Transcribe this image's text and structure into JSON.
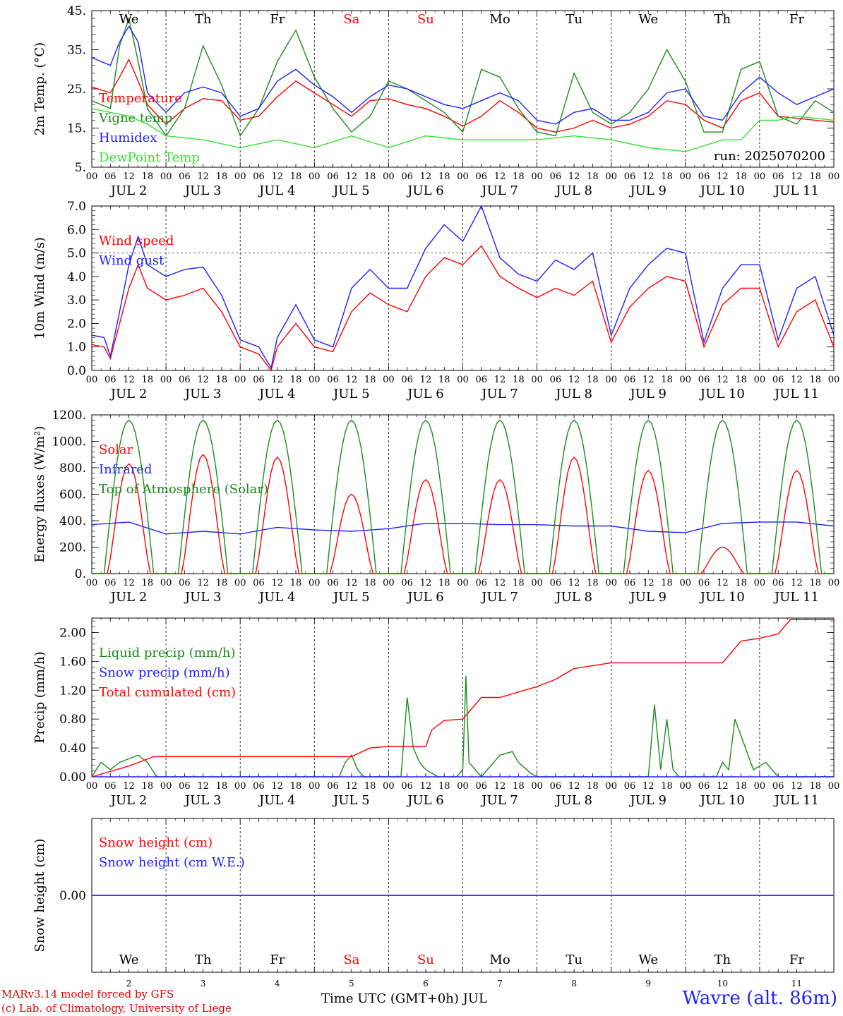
{
  "days": {
    "weekdays": [
      "We",
      "Th",
      "Fr",
      "Sa",
      "Su",
      "Mo",
      "Tu",
      "We",
      "Th",
      "Fr"
    ],
    "weekday_colors": [
      "#000000",
      "#000000",
      "#000000",
      "#ff0000",
      "#ff0000",
      "#000000",
      "#000000",
      "#000000",
      "#000000",
      "#000000"
    ],
    "day_numbers": [
      "2",
      "3",
      "4",
      "5",
      "6",
      "7",
      "8",
      "9",
      "10",
      "11"
    ],
    "date_labels": [
      "JUL  2",
      "JUL  3",
      "JUL  4",
      "JUL  5",
      "JUL  6",
      "JUL  7",
      "JUL  8",
      "JUL  9",
      "JUL 10",
      "JUL 11"
    ],
    "hour_ticks": [
      "00",
      "06",
      "12",
      "18"
    ],
    "final_tick": "00"
  },
  "footer": {
    "model_line": "MARv3.14 model forced by GFS",
    "credit_line": "(c) Lab. of Climatology, University of Liege",
    "xlabel": "Time UTC (GMT+0h) JUL",
    "station": "Wavre (alt. 86m)"
  },
  "chart_data": [
    {
      "type": "line",
      "ylabel": "2m Temp. (°C)",
      "ylim": [
        5,
        45
      ],
      "yticks": [
        "5.",
        "15.",
        "25.",
        "35.",
        "45."
      ],
      "ytick_values": [
        5,
        15,
        25,
        35,
        45
      ],
      "annotation": "run: 2025070200",
      "x_unit": "hours since JUL 2 00 UTC",
      "series": [
        {
          "name": "Temperature",
          "color": "#ff0000",
          "x": [
            0,
            6,
            9,
            12,
            15,
            18,
            24,
            30,
            36,
            42,
            48,
            54,
            60,
            66,
            72,
            78,
            84,
            90,
            96,
            102,
            108,
            114,
            120,
            126,
            132,
            138,
            144,
            150,
            156,
            162,
            168,
            174,
            180,
            186,
            192,
            198,
            204,
            210,
            216,
            222,
            228,
            234,
            240
          ],
          "y": [
            25.5,
            24,
            28,
            32.5,
            27,
            21,
            16,
            20,
            22.5,
            22,
            17,
            18,
            23,
            27,
            24,
            21,
            18,
            22,
            22.5,
            21,
            20,
            18,
            15.5,
            18,
            22,
            19,
            15,
            14,
            15,
            17,
            15,
            16,
            18,
            22,
            21,
            17,
            15,
            22,
            24,
            18,
            17.5,
            17,
            16.5
          ]
        },
        {
          "name": "Vigne temp",
          "color": "#1a8c1a",
          "x": [
            0,
            6,
            9,
            12,
            15,
            18,
            24,
            30,
            36,
            42,
            48,
            54,
            60,
            66,
            72,
            78,
            84,
            90,
            96,
            102,
            108,
            114,
            120,
            126,
            132,
            138,
            144,
            150,
            156,
            162,
            168,
            174,
            180,
            186,
            192,
            198,
            204,
            210,
            216,
            222,
            228,
            234,
            240
          ],
          "y": [
            22,
            20,
            36,
            43,
            32,
            20,
            13,
            20,
            36,
            26,
            13,
            20,
            32,
            40,
            28,
            20,
            14,
            18,
            27,
            25,
            22,
            19,
            14,
            30,
            28,
            20,
            14,
            13,
            29,
            19,
            16,
            19,
            25,
            35,
            27,
            14,
            14,
            30,
            32,
            18,
            16,
            22,
            19
          ]
        },
        {
          "name": "Humidex",
          "color": "#2020ff",
          "x": [
            0,
            6,
            9,
            12,
            15,
            18,
            24,
            30,
            36,
            42,
            48,
            54,
            60,
            66,
            72,
            78,
            84,
            90,
            96,
            102,
            108,
            114,
            120,
            126,
            132,
            138,
            144,
            150,
            156,
            162,
            168,
            174,
            180,
            186,
            192,
            198,
            204,
            210,
            216,
            222,
            228,
            234,
            240
          ],
          "y": [
            33,
            31,
            37,
            41,
            37,
            24,
            19,
            24,
            25.5,
            24,
            18,
            20,
            27,
            30,
            26,
            23,
            19,
            23,
            26,
            25,
            23,
            21,
            20,
            22,
            24,
            22,
            17,
            16,
            19,
            20,
            17,
            17,
            19,
            24,
            25,
            18,
            17,
            24,
            28,
            24,
            21,
            23,
            25
          ]
        },
        {
          "name": "DewPoint Temp",
          "color": "#33e033",
          "x": [
            0,
            6,
            12,
            18,
            24,
            36,
            48,
            60,
            72,
            84,
            96,
            108,
            120,
            132,
            144,
            156,
            168,
            180,
            192,
            204,
            210,
            216,
            222,
            228,
            240
          ],
          "y": [
            20,
            19,
            18,
            16,
            13,
            12,
            10,
            12,
            10,
            13,
            10,
            13,
            12,
            12,
            12,
            13,
            12,
            10,
            9,
            12,
            12,
            17,
            17,
            18,
            17
          ]
        }
      ]
    },
    {
      "type": "line",
      "ylabel": "10m Wind (m/s)",
      "ylim": [
        0,
        7
      ],
      "yticks": [
        "0.0",
        "1.0",
        "2.0",
        "3.0",
        "4.0",
        "5.0",
        "6.0",
        "7.0"
      ],
      "ytick_values": [
        0,
        1,
        2,
        3,
        4,
        5,
        6,
        7
      ],
      "reference_line": 5.0,
      "x_unit": "hours since JUL 2 00 UTC",
      "series": [
        {
          "name": "Wind speed",
          "color": "#ff0000",
          "x": [
            0,
            4,
            6,
            9,
            12,
            15,
            18,
            24,
            30,
            36,
            42,
            48,
            54,
            58,
            60,
            66,
            72,
            78,
            84,
            90,
            96,
            102,
            108,
            114,
            120,
            126,
            132,
            138,
            144,
            150,
            156,
            162,
            168,
            174,
            180,
            186,
            192,
            198,
            204,
            210,
            216,
            222,
            228,
            234,
            240
          ],
          "y": [
            1.1,
            1.0,
            0.5,
            2.0,
            3.5,
            4.5,
            3.5,
            3.0,
            3.2,
            3.5,
            2.5,
            1.0,
            0.7,
            0.0,
            1.0,
            2.0,
            1.0,
            0.8,
            2.5,
            3.3,
            2.8,
            2.5,
            4.0,
            4.8,
            4.5,
            5.3,
            4.0,
            3.5,
            3.1,
            3.5,
            3.2,
            3.8,
            1.2,
            2.7,
            3.5,
            4.0,
            3.8,
            1.0,
            2.8,
            3.5,
            3.5,
            1.0,
            2.5,
            3.0,
            1.0
          ]
        },
        {
          "name": "Wind gust",
          "color": "#2020ff",
          "x": [
            0,
            4,
            6,
            9,
            12,
            15,
            18,
            24,
            30,
            36,
            42,
            48,
            54,
            58,
            60,
            66,
            72,
            78,
            84,
            90,
            96,
            102,
            108,
            114,
            120,
            126,
            132,
            138,
            144,
            150,
            156,
            162,
            168,
            174,
            180,
            186,
            192,
            198,
            204,
            210,
            216,
            222,
            228,
            234,
            240
          ],
          "y": [
            1.5,
            1.4,
            0.6,
            2.5,
            4.5,
            5.7,
            4.5,
            4.0,
            4.3,
            4.4,
            3.2,
            1.3,
            1.0,
            0.1,
            1.4,
            2.8,
            1.3,
            1.0,
            3.5,
            4.3,
            3.5,
            3.5,
            5.2,
            6.2,
            5.5,
            7.0,
            4.8,
            4.1,
            3.8,
            4.7,
            4.3,
            5.0,
            1.5,
            3.5,
            4.5,
            5.2,
            5.0,
            1.2,
            3.5,
            4.5,
            4.5,
            1.3,
            3.5,
            4.0,
            1.5
          ]
        }
      ]
    },
    {
      "type": "line",
      "ylabel": "Energy fluxes (W/m²)",
      "ylim": [
        0,
        1200
      ],
      "yticks": [
        "0.",
        "200.",
        "400.",
        "600.",
        "800.",
        "1000.",
        "1200."
      ],
      "ytick_values": [
        0,
        200,
        400,
        600,
        800,
        1000,
        1200
      ],
      "x_unit": "hours since JUL 2 00 UTC",
      "series": [
        {
          "name": "Solar",
          "color": "#ff0000",
          "peaks": [
            {
              "day": 0,
              "peak": 830
            },
            {
              "day": 1,
              "peak": 900
            },
            {
              "day": 2,
              "peak": 880
            },
            {
              "day": 3,
              "peak": 600
            },
            {
              "day": 4,
              "peak": 710
            },
            {
              "day": 5,
              "peak": 710
            },
            {
              "day": 6,
              "peak": 880
            },
            {
              "day": 7,
              "peak": 780
            },
            {
              "day": 8,
              "peak": 200
            },
            {
              "day": 9,
              "peak": 780
            }
          ]
        },
        {
          "name": "Infrared",
          "color": "#2020ff",
          "x": [
            0,
            12,
            24,
            36,
            48,
            60,
            72,
            84,
            96,
            108,
            120,
            132,
            144,
            156,
            168,
            180,
            192,
            204,
            216,
            228,
            240
          ],
          "y": [
            370,
            390,
            300,
            320,
            300,
            350,
            330,
            320,
            340,
            380,
            380,
            370,
            370,
            360,
            360,
            320,
            310,
            380,
            390,
            390,
            360
          ]
        },
        {
          "name": "Top of Atmosphere (Solar)",
          "color": "#1a8c1a",
          "daily_peak": 1160
        }
      ]
    },
    {
      "type": "line",
      "ylabel": "Precip (mm/h)",
      "ylim": [
        0,
        2.2
      ],
      "yticks": [
        "0.00",
        "0.40",
        "0.80",
        "1.20",
        "1.60",
        "2.00"
      ],
      "ytick_values": [
        0,
        0.4,
        0.8,
        1.2,
        1.6,
        2.0
      ],
      "x_unit": "hours since JUL 2 00 UTC",
      "series": [
        {
          "name": "Liquid precip (mm/h)",
          "color": "#1a8c1a",
          "x": [
            0,
            3,
            6,
            9,
            12,
            15,
            18,
            21,
            24,
            80,
            82,
            84,
            86,
            88,
            100,
            102,
            104,
            106,
            108,
            110,
            112,
            118,
            120,
            121,
            122,
            124,
            126,
            132,
            136,
            138,
            142,
            144,
            180,
            182,
            184,
            186,
            188,
            190,
            202,
            204,
            206,
            208,
            214,
            218,
            222,
            228,
            240
          ],
          "y": [
            0,
            0.2,
            0.1,
            0.2,
            0.25,
            0.3,
            0.2,
            0,
            0,
            0,
            0.2,
            0.3,
            0.1,
            0,
            0,
            1.1,
            0.4,
            0.2,
            0.1,
            0.05,
            0,
            0,
            0.1,
            1.4,
            0.2,
            0.1,
            0,
            0.3,
            0.35,
            0.2,
            0.05,
            0,
            0,
            1.0,
            0.1,
            0.8,
            0.1,
            0,
            0,
            0.2,
            0.1,
            0.8,
            0.1,
            0.2,
            0,
            0,
            0
          ]
        },
        {
          "name": "Snow precip (mm/h)",
          "color": "#2020ff",
          "x": [
            0,
            240
          ],
          "y": [
            0,
            0
          ]
        },
        {
          "name": "Total cumulated (cm)",
          "color": "#ff0000",
          "x": [
            0,
            12,
            20,
            24,
            84,
            90,
            96,
            108,
            110,
            114,
            120,
            126,
            132,
            144,
            150,
            156,
            168,
            204,
            210,
            216,
            222,
            226,
            240
          ],
          "y": [
            0,
            0.15,
            0.28,
            0.28,
            0.28,
            0.4,
            0.42,
            0.42,
            0.65,
            0.78,
            0.8,
            1.1,
            1.1,
            1.25,
            1.35,
            1.5,
            1.58,
            1.58,
            1.88,
            1.92,
            1.98,
            2.18,
            2.18
          ]
        }
      ]
    },
    {
      "type": "line",
      "ylabel": "Snow height (cm)",
      "yticks": [
        "0.00"
      ],
      "ytick_values": [
        0
      ],
      "x_unit": "hours since JUL 2 00 UTC",
      "series": [
        {
          "name": "Snow height (cm)",
          "color": "#ff0000",
          "x": [
            0,
            240
          ],
          "y": [
            0,
            0
          ]
        },
        {
          "name": "Snow height (cm W.E.)",
          "color": "#2020ff",
          "x": [
            0,
            240
          ],
          "y": [
            0,
            0
          ]
        }
      ]
    }
  ]
}
